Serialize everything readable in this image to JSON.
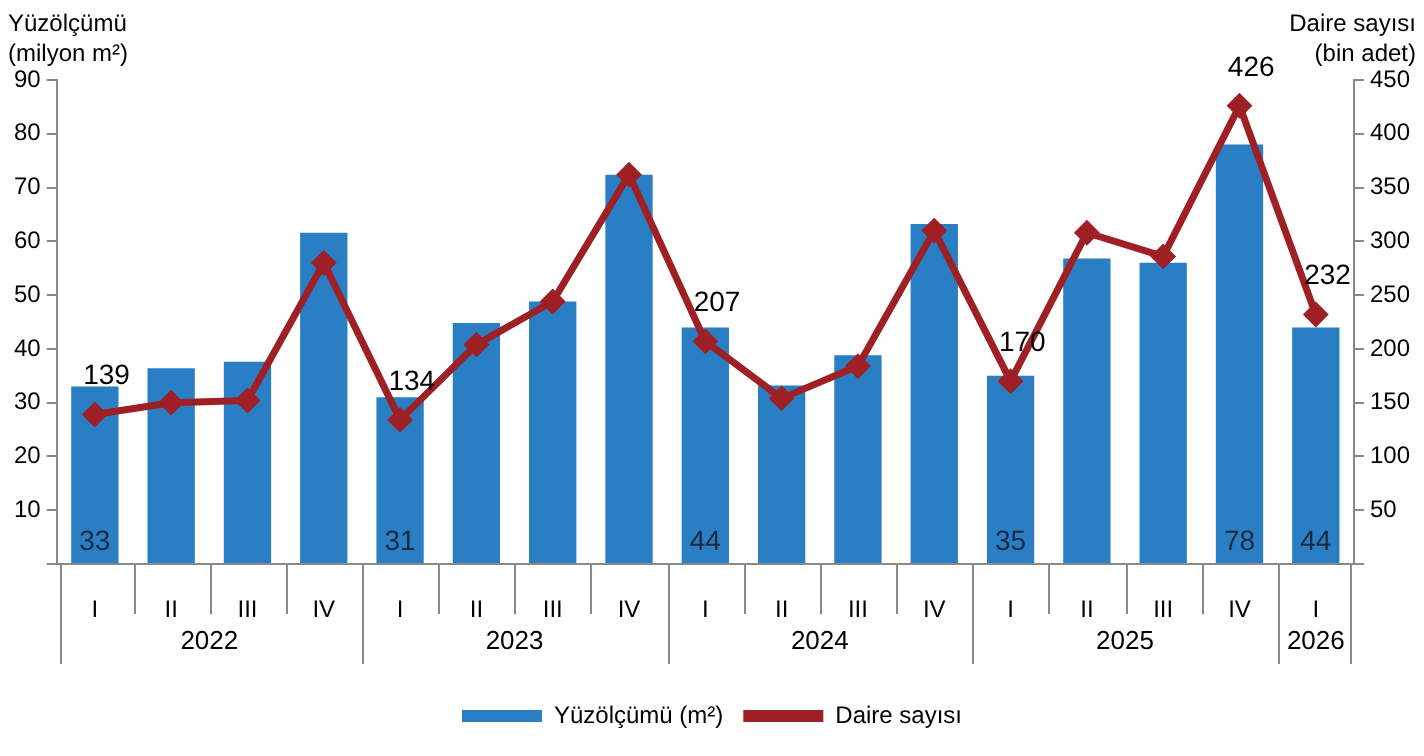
{
  "chart_data": {
    "type": "bar",
    "categories": [
      "I",
      "II",
      "III",
      "IV",
      "I",
      "II",
      "III",
      "IV",
      "I",
      "II",
      "III",
      "IV",
      "I",
      "II",
      "III",
      "IV",
      "I"
    ],
    "ylabel": "Yüzölçümü\n(milyon m²)",
    "y2label": "Daire sayısı\n(bin adet)",
    "series": [
      {
        "name": "Yüzölçümü (m²)",
        "color": "#2a7fc4",
        "values": [
          33,
          36.4,
          37.6,
          61.6,
          31,
          44.8,
          48.8,
          72.4,
          44,
          33.2,
          38.8,
          63.2,
          35,
          56.8,
          56,
          78,
          44
        ],
        "value_labels": [
          "33",
          null,
          null,
          null,
          "31",
          null,
          null,
          null,
          "44",
          null,
          null,
          null,
          "35",
          null,
          null,
          "78",
          "44"
        ]
      },
      {
        "name": "Daire sayısı",
        "type": "line",
        "axis": "y2",
        "color": "#9e1f24",
        "marker": "diamond",
        "values": [
          139,
          150,
          152,
          280,
          134,
          204,
          244,
          362,
          207,
          154,
          184,
          310,
          170,
          308,
          286,
          426,
          232
        ],
        "value_labels": [
          "139",
          null,
          null,
          null,
          "134",
          null,
          null,
          null,
          "207",
          null,
          null,
          null,
          "170",
          null,
          null,
          "426",
          "232"
        ]
      }
    ],
    "ylim": [
      0,
      90
    ],
    "yticks": [
      {
        "value": 0,
        "label": null
      },
      10,
      20,
      30,
      40,
      50,
      60,
      70,
      80,
      90
    ],
    "y2lim": [
      0,
      450
    ],
    "y2ticks": [
      {
        "value": 0,
        "label": null
      },
      50,
      100,
      150,
      200,
      250,
      300,
      350,
      400,
      450
    ],
    "annotations": [
      "2022",
      "2023",
      "2024",
      "2025",
      "2026"
    ],
    "grid": false,
    "legend": "bottom"
  }
}
